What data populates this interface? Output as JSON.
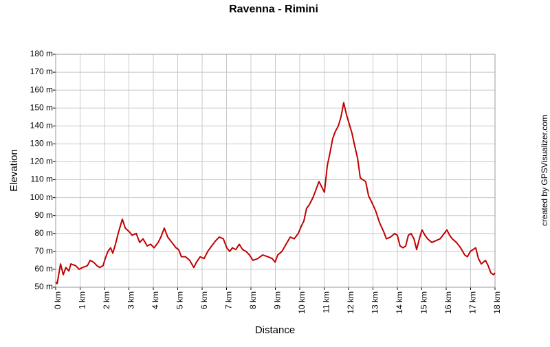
{
  "chart_data": {
    "type": "line",
    "title": "Ravenna - Rimini",
    "x_label": "Distance",
    "y_label": "Elevation",
    "credit": "created by GPSVisualizer.com",
    "grid": true,
    "xlim": [
      0,
      18
    ],
    "ylim": [
      50,
      180
    ],
    "xticks": [
      {
        "value": 0,
        "label": "0 km"
      },
      {
        "value": 1,
        "label": "1 km"
      },
      {
        "value": 2,
        "label": "2 km"
      },
      {
        "value": 3,
        "label": "3 km"
      },
      {
        "value": 4,
        "label": "4 km"
      },
      {
        "value": 5,
        "label": "5 km"
      },
      {
        "value": 6,
        "label": "6 km"
      },
      {
        "value": 7,
        "label": "7 km"
      },
      {
        "value": 8,
        "label": "8 km"
      },
      {
        "value": 9,
        "label": "9 km"
      },
      {
        "value": 10,
        "label": "10 km"
      },
      {
        "value": 11,
        "label": "11 km"
      },
      {
        "value": 12,
        "label": "12 km"
      },
      {
        "value": 13,
        "label": "13 km"
      },
      {
        "value": 14,
        "label": "14 km"
      },
      {
        "value": 15,
        "label": "15 km"
      },
      {
        "value": 16,
        "label": "16 km"
      },
      {
        "value": 17,
        "label": "17 km"
      },
      {
        "value": 18,
        "label": "18 km"
      }
    ],
    "yticks": [
      {
        "value": 50,
        "label": "50 m"
      },
      {
        "value": 60,
        "label": "60 m"
      },
      {
        "value": 70,
        "label": "70 m"
      },
      {
        "value": 80,
        "label": "80 m"
      },
      {
        "value": 90,
        "label": "90 m"
      },
      {
        "value": 100,
        "label": "100 m"
      },
      {
        "value": 110,
        "label": "110 m"
      },
      {
        "value": 120,
        "label": "120 m"
      },
      {
        "value": 130,
        "label": "130 m"
      },
      {
        "value": 140,
        "label": "140 m"
      },
      {
        "value": 150,
        "label": "150 m"
      },
      {
        "value": 160,
        "label": "160 m"
      },
      {
        "value": 170,
        "label": "170 m"
      },
      {
        "value": 180,
        "label": "180 m"
      }
    ],
    "x": [
      0,
      0.06,
      0.2,
      0.31,
      0.42,
      0.54,
      0.62,
      0.82,
      0.96,
      1.1,
      1.3,
      1.41,
      1.55,
      1.69,
      1.8,
      1.94,
      2.03,
      2.14,
      2.25,
      2.34,
      2.45,
      2.56,
      2.73,
      2.85,
      3.01,
      3.13,
      3.3,
      3.44,
      3.58,
      3.75,
      3.89,
      4.03,
      4.2,
      4.31,
      4.45,
      4.59,
      4.76,
      4.93,
      5.04,
      5.15,
      5.32,
      5.49,
      5.66,
      5.77,
      5.92,
      6.08,
      6.23,
      6.39,
      6.56,
      6.7,
      6.87,
      7.01,
      7.13,
      7.24,
      7.38,
      7.52,
      7.66,
      7.8,
      7.94,
      8.08,
      8.28,
      8.48,
      8.7,
      8.87,
      8.99,
      9.1,
      9.27,
      9.44,
      9.61,
      9.77,
      9.94,
      10.06,
      10.17,
      10.28,
      10.39,
      10.54,
      10.68,
      10.79,
      10.9,
      11.01,
      11.13,
      11.24,
      11.35,
      11.46,
      11.58,
      11.69,
      11.8,
      11.92,
      12.03,
      12.14,
      12.25,
      12.37,
      12.48,
      12.59,
      12.7,
      12.82,
      12.93,
      13.1,
      13.27,
      13.44,
      13.55,
      13.72,
      13.89,
      14.0,
      14.11,
      14.23,
      14.34,
      14.45,
      14.56,
      14.68,
      14.79,
      14.9,
      15.01,
      15.13,
      15.24,
      15.41,
      15.58,
      15.75,
      15.92,
      16.03,
      16.14,
      16.25,
      16.42,
      16.59,
      16.76,
      16.87,
      16.99,
      17.1,
      17.21,
      17.32,
      17.44,
      17.61,
      17.72,
      17.83,
      17.94,
      18.0
    ],
    "series": [
      {
        "color": "#c00000",
        "values": [
          53,
          52,
          63,
          57,
          61,
          59,
          63,
          62,
          60,
          61,
          62,
          65,
          64,
          62,
          61,
          62,
          66,
          70,
          72,
          69,
          74,
          80,
          88,
          83,
          81,
          79,
          80,
          75,
          77,
          73,
          74,
          72,
          75,
          78,
          83,
          78,
          75,
          72,
          71,
          67,
          67,
          65,
          61,
          64,
          67,
          66,
          70,
          73,
          76,
          78,
          77,
          72,
          70,
          72,
          71,
          74,
          71,
          70,
          68,
          65,
          66,
          68,
          67,
          66,
          64,
          68,
          70,
          74,
          78,
          77,
          80,
          84,
          87,
          94,
          96,
          100,
          105,
          109,
          106,
          103,
          118,
          125,
          133,
          137,
          140,
          145,
          153,
          146,
          141,
          136,
          129,
          122,
          111,
          110,
          109,
          101,
          98,
          93,
          86,
          81,
          77,
          78,
          80,
          79,
          73,
          72,
          73,
          79,
          80,
          77,
          71,
          77,
          82,
          79,
          77,
          75,
          76,
          77,
          80,
          82,
          79,
          77,
          75,
          72,
          68,
          67,
          70,
          71,
          72,
          66,
          63,
          65,
          62,
          58,
          57,
          58
        ]
      }
    ]
  }
}
